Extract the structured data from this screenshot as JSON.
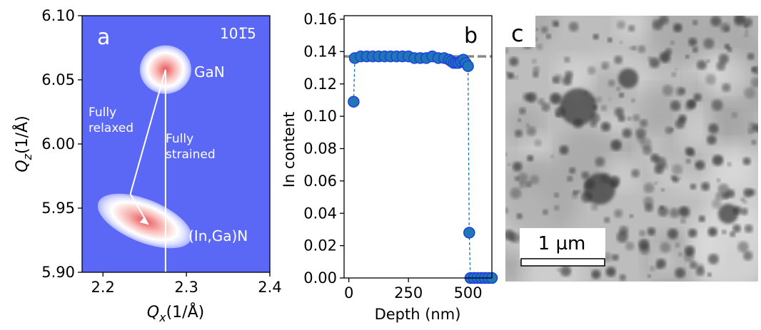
{
  "chart_data": [
    {
      "type": "contour",
      "panel_label": "a",
      "reflection": "101̅5",
      "xlabel": "Qx(1/Å)",
      "ylabel": "Qz(1/Å)",
      "xlim": [
        2.175,
        2.4
      ],
      "xticks": [
        2.2,
        2.3,
        2.4
      ],
      "ylim": [
        5.9,
        6.1
      ],
      "yticks": [
        {
          "value": 5.9,
          "label": "5.90"
        },
        5.95,
        {
          "value": 6.0,
          "label": "6.00"
        },
        6.05,
        {
          "value": 6.1,
          "label": "6.10"
        }
      ],
      "background": "#5b68f5",
      "peaks": [
        {
          "name": "GaN",
          "x": 2.275,
          "y": 6.058
        },
        {
          "name": "(In,Ga)N",
          "x": 2.25,
          "y": 5.94
        }
      ],
      "relaxed_label": [
        "Fully",
        "relaxed"
      ],
      "strained_label": [
        "Fully",
        "strained"
      ]
    },
    {
      "type": "scatter",
      "panel_label": "b",
      "xlabel": "Depth (nm)",
      "ylabel": "In content",
      "xlim": [
        -20,
        600
      ],
      "xticks": [
        0,
        250,
        500
      ],
      "ylim": [
        0,
        0.16
      ],
      "yticks": [
        {
          "value": 0,
          "label": "0.00"
        },
        {
          "value": 0.02,
          "label": "0.02"
        },
        {
          "value": 0.04,
          "label": "0.04"
        },
        {
          "value": 0.06,
          "label": "0.06"
        },
        {
          "value": 0.08,
          "label": "0.08"
        },
        {
          "value": 0.1,
          "label": "0.10"
        },
        {
          "value": 0.12,
          "label": "0.12"
        },
        {
          "value": 0.14,
          "label": "0.14"
        },
        {
          "value": 0.16,
          "label": "0.16"
        }
      ],
      "reference": 0.137,
      "reference_color": "#888888",
      "color": "#1f77b4",
      "edge_color": "#1f3fe0",
      "x": [
        20,
        25,
        50,
        75,
        100,
        125,
        150,
        175,
        200,
        225,
        250,
        275,
        300,
        325,
        350,
        375,
        400,
        420,
        430,
        440,
        450,
        460,
        470,
        480,
        490,
        500,
        505,
        510,
        525,
        540,
        555,
        570,
        585,
        600
      ],
      "values": [
        0.109,
        0.136,
        0.137,
        0.137,
        0.137,
        0.137,
        0.137,
        0.137,
        0.137,
        0.137,
        0.137,
        0.136,
        0.136,
        0.136,
        0.137,
        0.136,
        0.136,
        0.135,
        0.134,
        0.133,
        0.133,
        0.133,
        0.134,
        0.135,
        0.133,
        0.131,
        0.028,
        0,
        0,
        0,
        0,
        0,
        0,
        0
      ]
    },
    {
      "type": "image",
      "panel_label": "c",
      "scale_bar": "1 µm"
    }
  ]
}
